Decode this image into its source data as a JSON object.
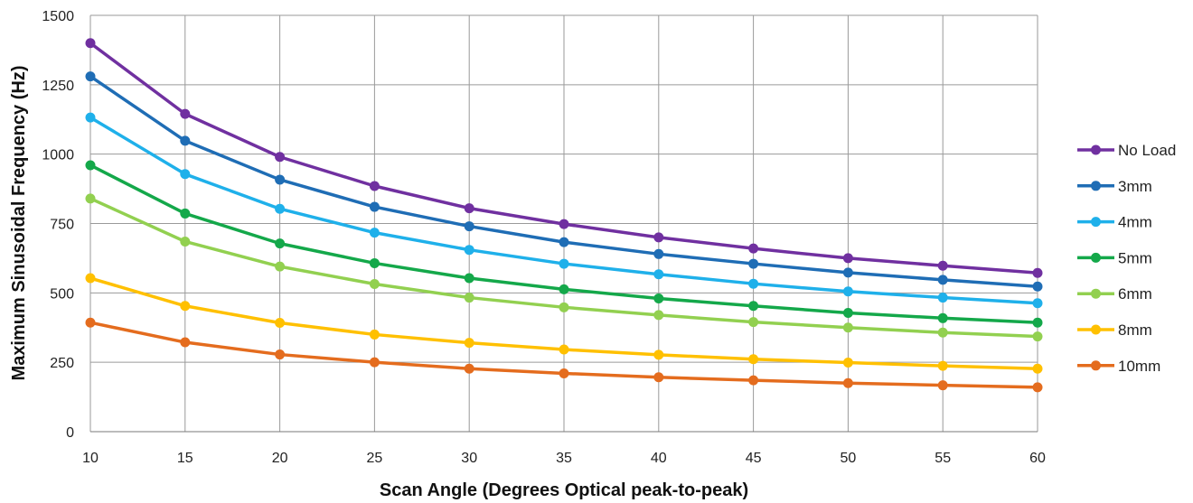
{
  "chart_data": {
    "type": "line",
    "title": "",
    "xlabel": "Scan Angle (Degrees Optical peak-to-peak)",
    "ylabel": "Maximum Sinusoidal Frequency (Hz)",
    "x": [
      10,
      15,
      20,
      25,
      30,
      35,
      40,
      45,
      50,
      55,
      60
    ],
    "x_ticks": [
      "10",
      "15",
      "20",
      "25",
      "30",
      "35",
      "40",
      "45",
      "50",
      "55",
      "60"
    ],
    "xlim": [
      10,
      60
    ],
    "ylim": [
      0,
      1500
    ],
    "y_ticks": [
      "0",
      "250",
      "500",
      "750",
      "1000",
      "1250",
      "1500"
    ],
    "grid": true,
    "legend_position": "right",
    "series": [
      {
        "name": "No Load",
        "color": "#7030a0",
        "values": [
          1400,
          1145,
          990,
          885,
          805,
          748,
          700,
          660,
          625,
          598,
          572
        ]
      },
      {
        "name": "3mm",
        "color": "#1f6db5",
        "values": [
          1280,
          1048,
          908,
          810,
          740,
          683,
          640,
          605,
          573,
          547,
          523
        ]
      },
      {
        "name": "4mm",
        "color": "#1fb0ea",
        "values": [
          1132,
          928,
          803,
          717,
          655,
          605,
          567,
          533,
          505,
          483,
          463
        ]
      },
      {
        "name": "5mm",
        "color": "#14a84a",
        "values": [
          960,
          786,
          678,
          607,
          553,
          513,
          480,
          453,
          428,
          409,
          393
        ]
      },
      {
        "name": "6mm",
        "color": "#92d050",
        "values": [
          840,
          685,
          595,
          532,
          483,
          448,
          420,
          395,
          375,
          357,
          343
        ]
      },
      {
        "name": "8mm",
        "color": "#ffc000",
        "values": [
          553,
          453,
          392,
          350,
          320,
          296,
          277,
          261,
          249,
          237,
          227
        ]
      },
      {
        "name": "10mm",
        "color": "#e46c1e",
        "values": [
          393,
          322,
          278,
          250,
          227,
          210,
          196,
          185,
          175,
          167,
          160
        ]
      }
    ]
  }
}
